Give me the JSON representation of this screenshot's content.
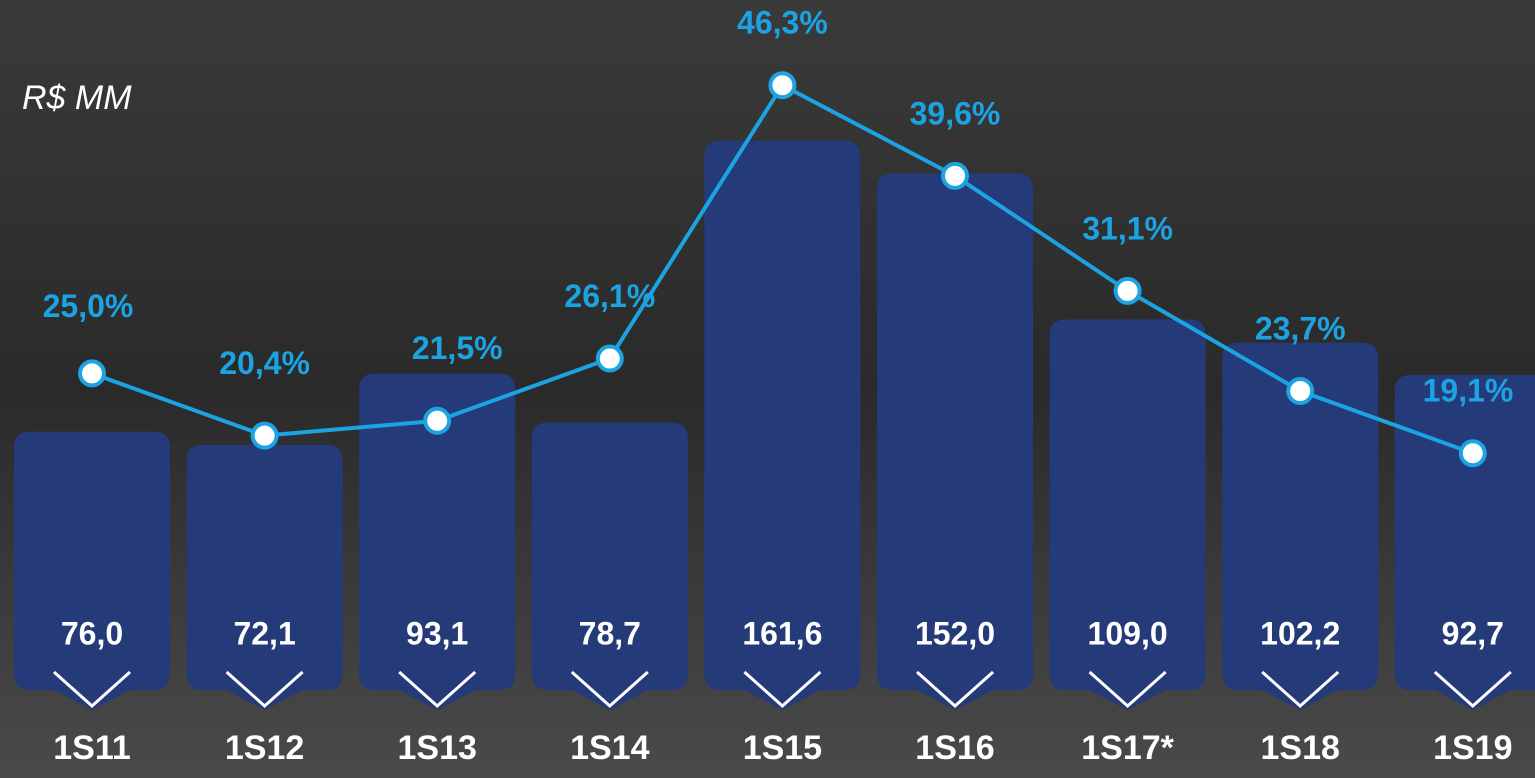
{
  "chart_data": {
    "type": "bar_line",
    "unit_label": "R$ MM",
    "categories": [
      "1S11",
      "1S12",
      "1S13",
      "1S14",
      "1S15",
      "1S16",
      "1S17*",
      "1S18",
      "1S19"
    ],
    "series": [
      {
        "type": "bar",
        "color": "#253a78",
        "values": [
          76.0,
          72.1,
          93.1,
          78.7,
          161.6,
          152.0,
          109.0,
          102.2,
          92.7
        ],
        "value_labels": [
          "76,0",
          "72,1",
          "93,1",
          "78,7",
          "161,6",
          "152,0",
          "109,0",
          "102,2",
          "92,7"
        ]
      },
      {
        "type": "line",
        "color": "#1ba3e2",
        "axis": "y2",
        "values": [
          25.0,
          20.4,
          21.5,
          26.1,
          46.3,
          39.6,
          31.1,
          23.7,
          19.1
        ],
        "value_labels": [
          "25,0%",
          "20,4%",
          "21,5%",
          "26,1%",
          "46,3%",
          "39,6%",
          "31,1%",
          "23,7%",
          "19,1%"
        ]
      }
    ],
    "ylim": [
      0,
      203
    ],
    "y2lim": [
      1.6,
      52.6
    ]
  }
}
